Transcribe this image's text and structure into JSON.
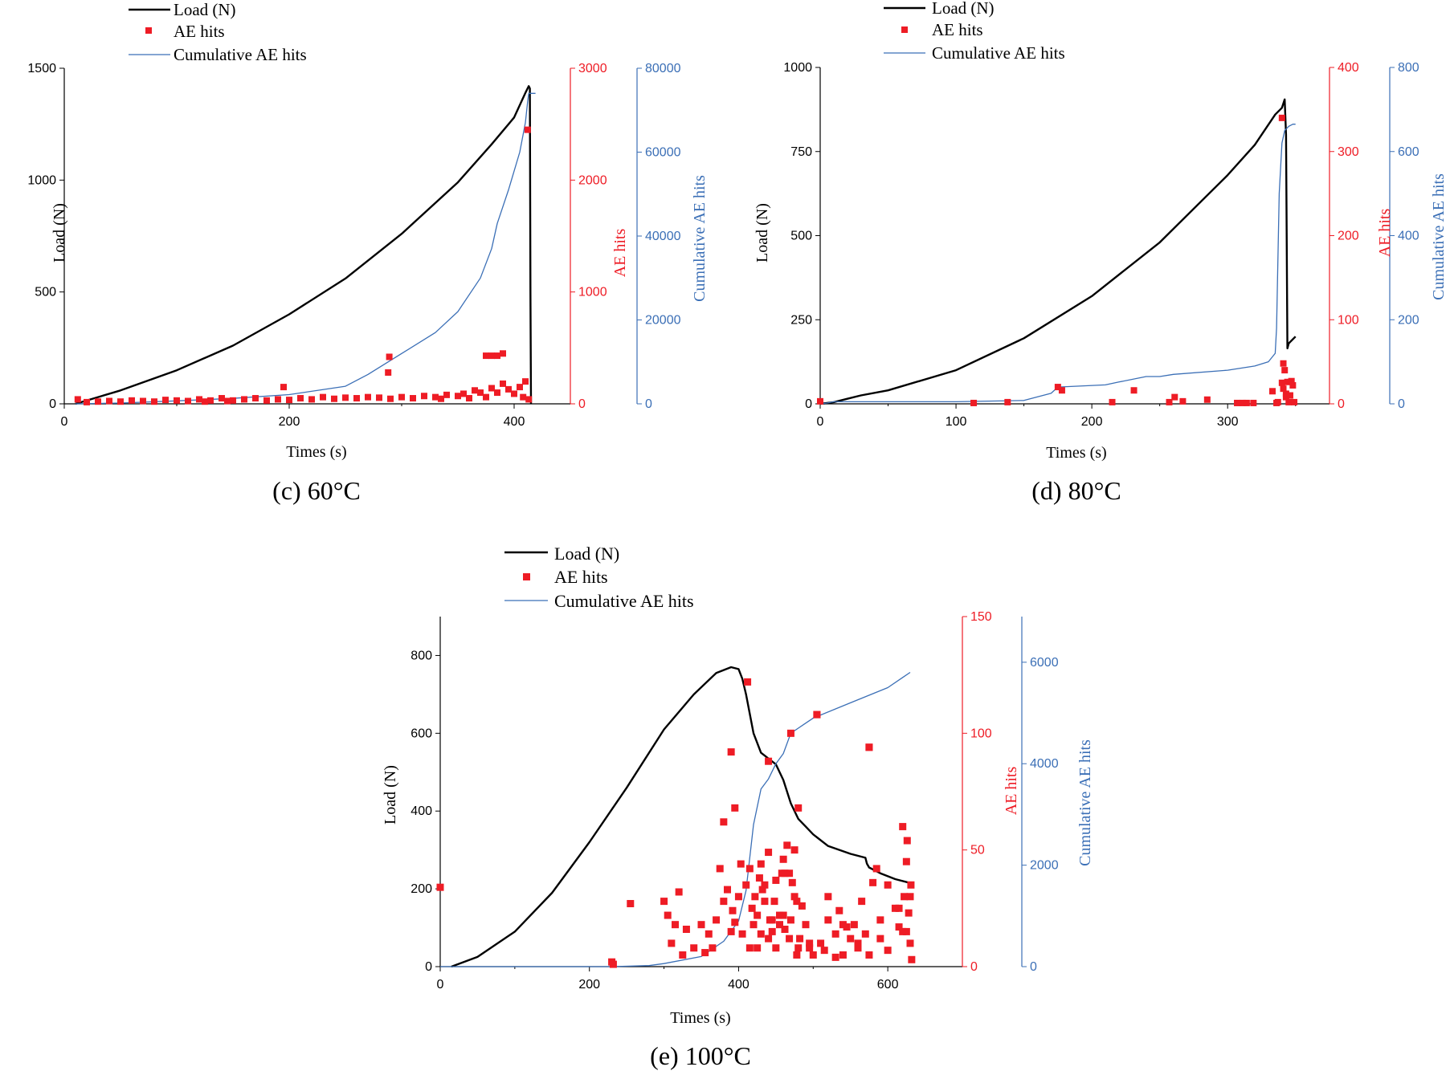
{
  "colors": {
    "load": "#000000",
    "ae": "#ee1c25",
    "cum": "#3b6fb6",
    "axis": "#000000"
  },
  "chart_data": [
    {
      "type": "line",
      "panel_id": "c",
      "caption": "(c) 60°C",
      "xlabel": "Times (s)",
      "ylabel_left": "Load (N)",
      "ylabel_right1": "AE hits",
      "ylabel_right2": "Cumulative AE hits",
      "xlim": [
        0,
        450
      ],
      "xticks": [
        0,
        200,
        400
      ],
      "ylim_load": [
        0,
        1500
      ],
      "yticks_load": [
        0,
        500,
        1000,
        1500
      ],
      "ylim_ae": [
        0,
        3000
      ],
      "yticks_ae": [
        0,
        1000,
        2000,
        3000
      ],
      "ylim_cum": [
        0,
        80000
      ],
      "yticks_cum": [
        0,
        20000,
        40000,
        60000,
        80000
      ],
      "legend": [
        "Load (N)",
        "AE hits",
        "Cumulative AE hits"
      ],
      "legend_position": "top-left",
      "series": [
        {
          "name": "Load (N)",
          "kind": "line",
          "x": [
            10,
            50,
            100,
            150,
            200,
            250,
            300,
            350,
            380,
            400,
            410,
            413,
            414,
            414.5,
            415
          ],
          "y": [
            0,
            60,
            150,
            260,
            400,
            560,
            760,
            990,
            1160,
            1280,
            1390,
            1420,
            1410,
            500,
            0
          ]
        },
        {
          "name": "Cumulative AE hits",
          "kind": "line",
          "x": [
            10,
            50,
            100,
            150,
            200,
            250,
            270,
            300,
            330,
            350,
            370,
            380,
            385,
            395,
            405,
            410,
            412,
            413,
            419
          ],
          "y": [
            0,
            200,
            700,
            1300,
            2200,
            4200,
            7000,
            12000,
            17000,
            22000,
            30000,
            37000,
            43000,
            51000,
            60000,
            67000,
            72000,
            74000,
            74000
          ]
        },
        {
          "name": "AE hits",
          "kind": "scatter",
          "x": [
            12,
            20,
            30,
            40,
            50,
            60,
            70,
            80,
            90,
            100,
            110,
            120,
            125,
            130,
            140,
            145,
            150,
            160,
            170,
            180,
            190,
            200,
            210,
            220,
            230,
            240,
            250,
            260,
            270,
            280,
            290,
            300,
            310,
            320,
            330,
            335,
            340,
            350,
            355,
            360,
            365,
            370,
            375,
            380,
            385,
            390,
            395,
            400,
            405,
            408,
            410,
            413,
            195,
            288,
            289,
            375,
            380,
            385,
            390,
            412
          ],
          "y": [
            40,
            15,
            20,
            25,
            20,
            30,
            25,
            20,
            35,
            30,
            25,
            40,
            20,
            30,
            50,
            25,
            30,
            40,
            50,
            30,
            40,
            35,
            50,
            40,
            60,
            45,
            55,
            50,
            60,
            55,
            45,
            60,
            50,
            70,
            60,
            45,
            80,
            70,
            90,
            50,
            120,
            100,
            60,
            140,
            100,
            180,
            130,
            90,
            150,
            60,
            200,
            40,
            150,
            280,
            420,
            430,
            430,
            430,
            450,
            2450
          ]
        }
      ]
    },
    {
      "type": "line",
      "panel_id": "d",
      "caption": "(d) 80°C",
      "xlabel": "Times (s)",
      "ylabel_left": "Load (N)",
      "ylabel_right1": "AE hits",
      "ylabel_right2": "Cumulative AE hits",
      "xlim": [
        0,
        375
      ],
      "xticks": [
        0,
        100,
        200,
        300
      ],
      "ylim_load": [
        0,
        1000
      ],
      "yticks_load": [
        0,
        250,
        500,
        750,
        1000
      ],
      "ylim_ae": [
        0,
        400
      ],
      "yticks_ae": [
        0,
        100,
        200,
        300,
        400
      ],
      "ylim_cum": [
        0,
        800
      ],
      "yticks_cum": [
        0,
        200,
        400,
        600,
        800
      ],
      "legend": [
        "Load (N)",
        "AE hits",
        "Cumulative AE hits"
      ],
      "legend_position": "top-left",
      "series": [
        {
          "name": "Load (N)",
          "kind": "line",
          "x": [
            0,
            10,
            20,
            30,
            50,
            100,
            150,
            200,
            250,
            300,
            320,
            335,
            340,
            342,
            343,
            344,
            345,
            350
          ],
          "y": [
            0,
            5,
            15,
            25,
            40,
            100,
            195,
            320,
            480,
            680,
            770,
            860,
            880,
            905,
            800,
            165,
            180,
            200
          ]
        },
        {
          "name": "Cumulative AE hits",
          "kind": "line",
          "x": [
            0,
            5,
            10,
            100,
            150,
            170,
            175,
            210,
            220,
            240,
            250,
            260,
            300,
            320,
            330,
            335,
            336,
            338,
            340,
            342,
            345,
            348,
            350
          ],
          "y": [
            0,
            2,
            5,
            5,
            8,
            25,
            40,
            45,
            52,
            65,
            65,
            70,
            80,
            90,
            100,
            120,
            180,
            500,
            620,
            650,
            660,
            665,
            665
          ]
        },
        {
          "name": "AE hits",
          "kind": "scatter",
          "x": [
            0,
            113,
            138,
            175,
            178,
            215,
            231,
            257,
            261,
            267,
            285,
            307,
            311,
            314,
            319,
            333,
            336,
            337,
            340,
            341,
            341,
            342,
            343,
            343,
            344,
            345,
            346,
            347,
            348,
            349,
            340
          ],
          "y": [
            3,
            1,
            2,
            20,
            16,
            2,
            16,
            2,
            8,
            3,
            5,
            1,
            1,
            1,
            1,
            15,
            1,
            2,
            25,
            18,
            48,
            40,
            12,
            8,
            26,
            2,
            10,
            27,
            22,
            2,
            340
          ]
        }
      ]
    },
    {
      "type": "line",
      "panel_id": "e",
      "caption": "(e) 100°C",
      "xlabel": "Times (s)",
      "ylabel_left": "Load (N)",
      "ylabel_right1": "AE hits",
      "ylabel_right2": "Cumulative AE hits",
      "xlim": [
        0,
        700
      ],
      "xticks": [
        0,
        200,
        400,
        600
      ],
      "ylim_load": [
        0,
        900
      ],
      "yticks_load": [
        0,
        200,
        400,
        600,
        800
      ],
      "ylim_ae": [
        0,
        150
      ],
      "yticks_ae": [
        0,
        50,
        100,
        150
      ],
      "ylim_cum": [
        0,
        6900
      ],
      "yticks_cum": [
        0,
        2000,
        4000,
        6000
      ],
      "legend": [
        "Load (N)",
        "AE hits",
        "Cumulative AE hits"
      ],
      "legend_position": "top-center",
      "series": [
        {
          "name": "Load (N)",
          "kind": "line",
          "x": [
            15,
            50,
            100,
            150,
            200,
            250,
            300,
            340,
            370,
            390,
            400,
            405,
            410,
            420,
            430,
            450,
            460,
            470,
            480,
            490,
            500,
            520,
            550,
            570,
            572,
            575,
            590,
            610,
            630
          ],
          "y": [
            0,
            25,
            90,
            190,
            320,
            460,
            610,
            700,
            755,
            770,
            765,
            740,
            700,
            600,
            550,
            520,
            480,
            420,
            380,
            360,
            340,
            310,
            290,
            280,
            265,
            255,
            240,
            225,
            215
          ]
        },
        {
          "name": "Cumulative AE hits",
          "kind": "line",
          "x": [
            0,
            230,
            280,
            300,
            350,
            380,
            400,
            410,
            420,
            430,
            440,
            450,
            460,
            470,
            480,
            490,
            500,
            550,
            600,
            620,
            630
          ],
          "y": [
            0,
            0,
            20,
            60,
            200,
            500,
            900,
            1500,
            2800,
            3500,
            3700,
            4000,
            4200,
            4600,
            4700,
            4800,
            4900,
            5200,
            5500,
            5700,
            5800
          ]
        },
        {
          "name": "AE hits",
          "kind": "scatter",
          "x": [
            0,
            230,
            232,
            255,
            300,
            305,
            310,
            315,
            320,
            325,
            330,
            340,
            350,
            355,
            360,
            365,
            370,
            375,
            380,
            385,
            390,
            392,
            395,
            400,
            403,
            405,
            410,
            412,
            415,
            418,
            420,
            422,
            425,
            428,
            430,
            432,
            435,
            440,
            442,
            445,
            448,
            450,
            455,
            458,
            460,
            462,
            465,
            468,
            470,
            472,
            475,
            478,
            480,
            485,
            490,
            495,
            500,
            505,
            510,
            515,
            520,
            530,
            535,
            540,
            545,
            550,
            555,
            560,
            565,
            570,
            575,
            580,
            585,
            590,
            600,
            610,
            615,
            620,
            622,
            625,
            626,
            628,
            630,
            631,
            632,
            440,
            462,
            470,
            475,
            480,
            505,
            575,
            415,
            395,
            380,
            390,
            425,
            430,
            435,
            440,
            445,
            450,
            455,
            460,
            468,
            478,
            482,
            495,
            520,
            530,
            540,
            560,
            575,
            590,
            600,
            615,
            620,
            625,
            630
          ],
          "y": [
            34,
            2,
            1,
            27,
            28,
            22,
            10,
            18,
            32,
            5,
            16,
            8,
            18,
            6,
            14,
            8,
            20,
            42,
            28,
            33,
            15,
            24,
            19,
            30,
            44,
            14,
            35,
            122,
            42,
            25,
            18,
            30,
            22,
            38,
            14,
            33,
            28,
            49,
            20,
            15,
            28,
            37,
            22,
            40,
            46,
            16,
            52,
            12,
            20,
            36,
            30,
            28,
            8,
            26,
            18,
            10,
            5,
            108,
            10,
            7,
            20,
            14,
            24,
            5,
            17,
            12,
            18,
            8,
            28,
            14,
            94,
            36,
            42,
            12,
            7,
            25,
            17,
            60,
            30,
            15,
            54,
            23,
            10,
            35,
            3,
            88,
            40,
            100,
            50,
            68,
            108,
            94,
            8,
            68,
            62,
            92,
            8,
            44,
            35,
            12,
            20,
            8,
            18,
            22,
            40,
            5,
            12,
            8,
            30,
            4,
            18,
            10,
            5,
            20,
            35,
            25,
            15,
            45,
            30
          ]
        }
      ]
    }
  ]
}
